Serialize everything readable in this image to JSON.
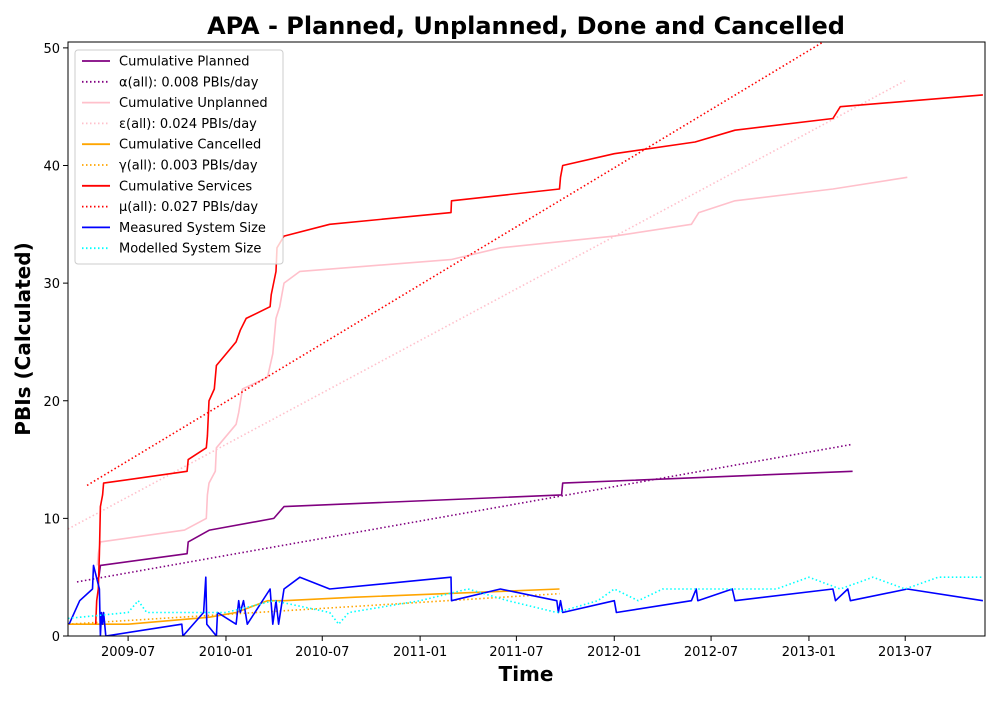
{
  "chart_data": {
    "type": "line",
    "title": "APA - Planned, Unplanned, Done  and Cancelled",
    "xlabel": "Time",
    "ylabel": "PBIs (Calculated)",
    "xlim": [
      "2009-03-10",
      "2013-11-28"
    ],
    "ylim": [
      0,
      50.5
    ],
    "x_ticks": [
      "2009-07",
      "2010-01",
      "2010-07",
      "2011-01",
      "2011-07",
      "2012-01",
      "2012-07",
      "2013-01",
      "2013-07"
    ],
    "y_ticks": [
      0,
      10,
      20,
      30,
      40,
      50
    ],
    "grid": false,
    "legend_position": "upper-left",
    "series": [
      {
        "name": "Cumulative Planned",
        "color": "#800080",
        "style": "solid",
        "points": [
          [
            "2009-05-07",
            5
          ],
          [
            "2009-05-10",
            6
          ],
          [
            "2009-10-20",
            7
          ],
          [
            "2009-10-22",
            8
          ],
          [
            "2009-12-01",
            9
          ],
          [
            "2010-04-01",
            10
          ],
          [
            "2010-04-20",
            11
          ],
          [
            "2011-09-24",
            12
          ],
          [
            "2011-09-26",
            13
          ],
          [
            "2013-03-24",
            14
          ]
        ]
      },
      {
        "name": "α(all): 0.008 PBIs/day",
        "color": "#800080",
        "style": "dotted",
        "points": [
          [
            "2009-03-27",
            4.6
          ],
          [
            "2013-03-24",
            16.3
          ]
        ]
      },
      {
        "name": "Cumulative Unplanned",
        "color": "#ffc0cb",
        "style": "solid",
        "points": [
          [
            "2009-05-04",
            6
          ],
          [
            "2009-05-06",
            7
          ],
          [
            "2009-05-10",
            8
          ],
          [
            "2009-10-15",
            9
          ],
          [
            "2009-11-25",
            10
          ],
          [
            "2009-11-27",
            12
          ],
          [
            "2009-11-30",
            13
          ],
          [
            "2009-12-12",
            14
          ],
          [
            "2009-12-14",
            16
          ],
          [
            "2010-01-20",
            18
          ],
          [
            "2010-01-25",
            19
          ],
          [
            "2010-02-01",
            21
          ],
          [
            "2010-03-20",
            22
          ],
          [
            "2010-03-30",
            24
          ],
          [
            "2010-04-05",
            27
          ],
          [
            "2010-04-12",
            28
          ],
          [
            "2010-04-20",
            30
          ],
          [
            "2010-05-20",
            31
          ],
          [
            "2011-02-28",
            32
          ],
          [
            "2011-06-01",
            33
          ],
          [
            "2012-01-01",
            34
          ],
          [
            "2012-05-25",
            35
          ],
          [
            "2012-06-08",
            36
          ],
          [
            "2012-08-15",
            37
          ],
          [
            "2013-02-15",
            38
          ],
          [
            "2013-07-05",
            39
          ]
        ]
      },
      {
        "name": "ε(all): 0.024 PBIs/day",
        "color": "#ffc0cb",
        "style": "dotted",
        "points": [
          [
            "2009-03-10",
            9.1
          ],
          [
            "2013-07-05",
            47.3
          ]
        ]
      },
      {
        "name": "Cumulative Cancelled",
        "color": "#ffa500",
        "style": "solid",
        "points": [
          [
            "2009-03-10",
            1
          ],
          [
            "2009-07-01",
            1
          ],
          [
            "2009-12-01",
            1.6
          ],
          [
            "2010-01-20",
            2
          ],
          [
            "2010-03-20",
            3
          ],
          [
            "2010-04-20",
            3
          ],
          [
            "2010-09-01",
            3.3
          ],
          [
            "2011-09-20",
            4
          ]
        ]
      },
      {
        "name": "γ(all): 0.003 PBIs/day",
        "color": "#ffa500",
        "style": "dotted",
        "points": [
          [
            "2009-03-10",
            1
          ],
          [
            "2011-09-20",
            3.6
          ]
        ]
      },
      {
        "name": "Cumulative Services",
        "color": "#ff0000",
        "style": "solid",
        "points": [
          [
            "2009-05-01",
            1
          ],
          [
            "2009-05-03",
            3
          ],
          [
            "2009-05-06",
            4
          ],
          [
            "2009-05-08",
            7
          ],
          [
            "2009-05-10",
            11
          ],
          [
            "2009-05-14",
            12
          ],
          [
            "2009-05-16",
            13
          ],
          [
            "2009-10-20",
            14
          ],
          [
            "2009-10-22",
            15
          ],
          [
            "2009-11-25",
            16
          ],
          [
            "2009-11-27",
            17
          ],
          [
            "2009-11-30",
            20
          ],
          [
            "2009-12-10",
            21
          ],
          [
            "2009-12-14",
            23
          ],
          [
            "2010-01-20",
            25
          ],
          [
            "2010-01-28",
            26
          ],
          [
            "2010-02-08",
            27
          ],
          [
            "2010-03-25",
            28
          ],
          [
            "2010-03-27",
            29
          ],
          [
            "2010-04-05",
            31
          ],
          [
            "2010-04-07",
            33
          ],
          [
            "2010-04-20",
            34
          ],
          [
            "2010-07-15",
            35
          ],
          [
            "2011-02-28",
            36
          ],
          [
            "2011-03-01",
            37
          ],
          [
            "2011-09-20",
            38
          ],
          [
            "2011-09-22",
            39
          ],
          [
            "2011-09-26",
            40
          ],
          [
            "2012-01-01",
            41
          ],
          [
            "2012-06-01",
            42
          ],
          [
            "2012-08-15",
            43
          ],
          [
            "2013-02-15",
            44
          ],
          [
            "2013-03-01",
            45
          ],
          [
            "2013-11-24",
            46
          ]
        ]
      },
      {
        "name": "μ(all): 0.027 PBIs/day",
        "color": "#ff0000",
        "style": "dotted",
        "points": [
          [
            "2009-04-15",
            12.8
          ],
          [
            "2013-02-15",
            51
          ]
        ]
      },
      {
        "name": "Measured System Size",
        "color": "#0000ff",
        "style": "solid",
        "points": [
          [
            "2009-03-12",
            1
          ],
          [
            "2009-04-01",
            3
          ],
          [
            "2009-04-25",
            4
          ],
          [
            "2009-04-27",
            6
          ],
          [
            "2009-05-08",
            4
          ],
          [
            "2009-05-10",
            0
          ],
          [
            "2009-05-12",
            2
          ],
          [
            "2009-05-14",
            1
          ],
          [
            "2009-05-16",
            2
          ],
          [
            "2009-05-20",
            0
          ],
          [
            "2009-10-10",
            1
          ],
          [
            "2009-10-12",
            0
          ],
          [
            "2009-11-20",
            2
          ],
          [
            "2009-11-24",
            5
          ],
          [
            "2009-11-26",
            1
          ],
          [
            "2009-12-14",
            0
          ],
          [
            "2009-12-16",
            2
          ],
          [
            "2010-01-20",
            1
          ],
          [
            "2010-01-25",
            3
          ],
          [
            "2010-01-28",
            2
          ],
          [
            "2010-02-03",
            3
          ],
          [
            "2010-02-10",
            1
          ],
          [
            "2010-03-25",
            4
          ],
          [
            "2010-03-30",
            1
          ],
          [
            "2010-04-05",
            3
          ],
          [
            "2010-04-10",
            1
          ],
          [
            "2010-04-20",
            4
          ],
          [
            "2010-05-20",
            5
          ],
          [
            "2010-07-15",
            4
          ],
          [
            "2011-02-28",
            5
          ],
          [
            "2011-03-01",
            3
          ],
          [
            "2011-06-01",
            4
          ],
          [
            "2011-09-15",
            3
          ],
          [
            "2011-09-18",
            2
          ],
          [
            "2011-09-22",
            3
          ],
          [
            "2011-09-26",
            2
          ],
          [
            "2012-01-01",
            3
          ],
          [
            "2012-01-05",
            2
          ],
          [
            "2012-05-25",
            3
          ],
          [
            "2012-06-03",
            4
          ],
          [
            "2012-06-06",
            3
          ],
          [
            "2012-08-10",
            4
          ],
          [
            "2012-08-15",
            3
          ],
          [
            "2013-02-15",
            4
          ],
          [
            "2013-02-20",
            3
          ],
          [
            "2013-03-15",
            4
          ],
          [
            "2013-03-20",
            3
          ],
          [
            "2013-07-05",
            4
          ],
          [
            "2013-11-24",
            3
          ]
        ]
      },
      {
        "name": "Modelled System Size",
        "color": "#00ffff",
        "style": "dotted",
        "points": [
          [
            "2009-03-10",
            1.5
          ],
          [
            "2009-07-01",
            2
          ],
          [
            "2009-07-20",
            3
          ],
          [
            "2009-08-05",
            2
          ],
          [
            "2010-01-01",
            2
          ],
          [
            "2010-04-01",
            3
          ],
          [
            "2010-07-15",
            2
          ],
          [
            "2010-08-01",
            1
          ],
          [
            "2010-08-20",
            2
          ],
          [
            "2011-01-01",
            3
          ],
          [
            "2011-04-01",
            4
          ],
          [
            "2011-06-15",
            3
          ],
          [
            "2011-09-15",
            2
          ],
          [
            "2011-12-01",
            3
          ],
          [
            "2012-01-01",
            4
          ],
          [
            "2012-02-15",
            3
          ],
          [
            "2012-04-01",
            4
          ],
          [
            "2012-06-01",
            4
          ],
          [
            "2012-08-01",
            4
          ],
          [
            "2012-11-01",
            4
          ],
          [
            "2013-01-01",
            5
          ],
          [
            "2013-03-01",
            4
          ],
          [
            "2013-05-01",
            5
          ],
          [
            "2013-07-01",
            4
          ],
          [
            "2013-09-01",
            5
          ],
          [
            "2013-11-24",
            5
          ]
        ]
      }
    ]
  }
}
